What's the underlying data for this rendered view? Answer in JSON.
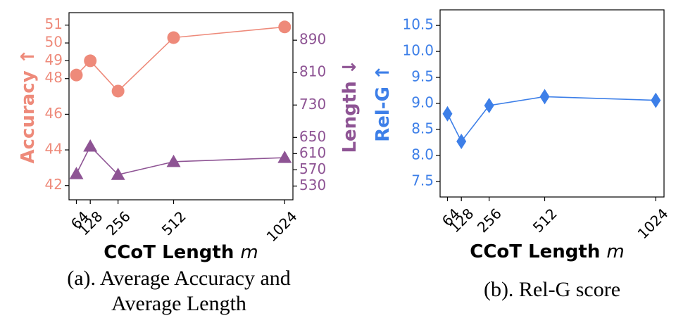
{
  "chart_data": [
    {
      "type": "line",
      "caption_lines": [
        "(a). Average Accuracy and",
        "Average Length"
      ],
      "xlabel": "CCoT Length",
      "xlabel_var": "m",
      "x": [
        64,
        128,
        256,
        512,
        1024
      ],
      "x_tick_labels": [
        "64",
        "128",
        "256",
        "512",
        "1024"
      ],
      "xlim": [
        30,
        1062
      ],
      "y_left": {
        "label": "Accuracy ↑",
        "color": "#EE8A7A",
        "lim": [
          41.2,
          51.7
        ],
        "ticks": [
          42,
          44,
          46,
          48,
          49,
          50,
          51
        ],
        "values": [
          48.2,
          49.0,
          47.3,
          50.3,
          50.9
        ],
        "marker": "circle"
      },
      "y_right": {
        "label": "Length ↓",
        "color": "#8E5494",
        "lim": [
          496,
          958
        ],
        "ticks": [
          530,
          570,
          610,
          650,
          730,
          810,
          890
        ],
        "values": [
          560,
          628,
          558,
          590,
          600
        ],
        "marker": "triangle"
      }
    },
    {
      "type": "line",
      "caption_lines": [
        "(b). Rel-G score"
      ],
      "xlabel": "CCoT Length",
      "xlabel_var": "m",
      "x": [
        64,
        128,
        256,
        512,
        1024
      ],
      "x_tick_labels": [
        "64",
        "128",
        "256",
        "512",
        "1024"
      ],
      "xlim": [
        30,
        1062
      ],
      "y": {
        "label": "Rel-G ↑",
        "color": "#3D7FE8",
        "lim": [
          7.2,
          10.8
        ],
        "ticks": [
          7.5,
          8.0,
          8.5,
          9.0,
          9.5,
          10.0,
          10.5
        ],
        "tick_labels": [
          "7.5",
          "8.0",
          "8.5",
          "9.0",
          "9.5",
          "10.0",
          "10.5"
        ],
        "values": [
          8.8,
          8.27,
          8.96,
          9.13,
          9.06
        ],
        "marker": "diamond"
      }
    }
  ]
}
